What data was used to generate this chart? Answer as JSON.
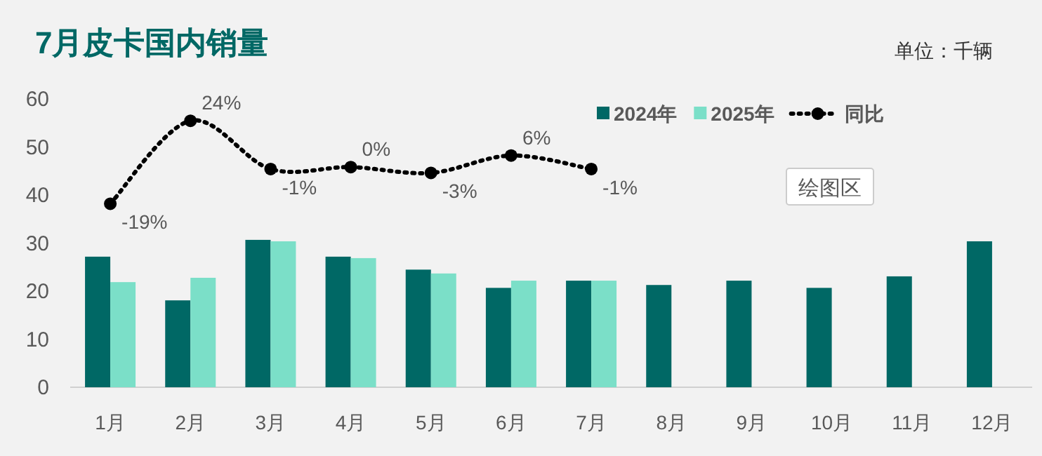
{
  "chart_data": {
    "type": "bar",
    "title": "7月皮卡国内销量",
    "subtitle": "单位：千辆",
    "categories": [
      "1月",
      "2月",
      "3月",
      "4月",
      "5月",
      "6月",
      "7月",
      "8月",
      "9月",
      "10月",
      "11月",
      "12月"
    ],
    "series": [
      {
        "name": "2024年",
        "color": "#006865",
        "values": [
          27.2,
          18.1,
          30.7,
          27.2,
          24.5,
          20.7,
          22.2,
          21.3,
          22.2,
          20.7,
          23.1,
          30.4
        ]
      },
      {
        "name": "2025年",
        "color": "#7bdfc8",
        "values": [
          21.9,
          22.8,
          30.4,
          26.9,
          23.7,
          22.2,
          22.2,
          null,
          null,
          null,
          null,
          null
        ]
      },
      {
        "name": "同比",
        "type": "line",
        "axis": "y2",
        "color": "#000000",
        "marker": "circle",
        "line_style": "dotted",
        "values": [
          -19,
          24,
          -1,
          0,
          -3,
          6,
          -1,
          null,
          null,
          null,
          null,
          null
        ],
        "value_labels": [
          "-19%",
          "24%",
          "-1%",
          "0%",
          "-3%",
          "6%",
          "-1%",
          null,
          null,
          null,
          null,
          null
        ]
      }
    ],
    "ylim": [
      0,
      60
    ],
    "yticks": [
      0,
      10,
      20,
      30,
      40,
      50,
      60
    ],
    "tick_labels": "x_y",
    "legend": "top right",
    "grid": false,
    "annotations": [
      "绘图区"
    ]
  }
}
